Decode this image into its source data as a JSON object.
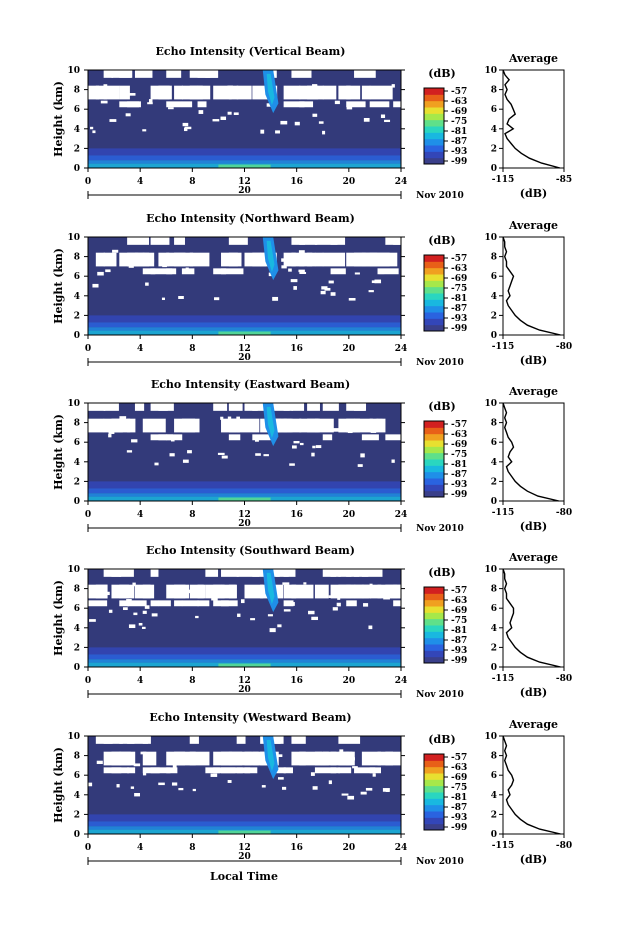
{
  "figure": {
    "xlabel": "Local Time",
    "date_label": "Nov 2010",
    "date_marker": "20",
    "colorbar_unit": "(dB)",
    "colorbar_ticks": [
      "-57",
      "-63",
      "-69",
      "-75",
      "-81",
      "-87",
      "-93",
      "-99"
    ],
    "profile_title": "Average",
    "profile_xlabel": "(dB)"
  },
  "colors": {
    "background_fill": "#333a7a",
    "colorbar": [
      "#3a3f8a",
      "#3346b8",
      "#2a63e0",
      "#1f8fe8",
      "#19b8e0",
      "#2ad6c0",
      "#5fe08a",
      "#a6e84a",
      "#e8e030",
      "#f0a020",
      "#e86018",
      "#d22020"
    ],
    "profile_line": "#000000"
  },
  "chart_data": [
    {
      "type": "heatmap",
      "title": "Echo Intensity (Vertical Beam)",
      "ylabel": "Height (km)",
      "xlim": [
        0,
        24
      ],
      "ylim": [
        0,
        10
      ],
      "xticks": [
        0,
        4,
        8,
        12,
        16,
        20,
        24
      ],
      "yticks": [
        0,
        2,
        4,
        6,
        8,
        10
      ],
      "clim": [
        -99,
        -57
      ],
      "beam": "vertical",
      "profile": {
        "title": "Average",
        "xlabel": "(dB)",
        "xlim": [
          -115,
          -85
        ],
        "xticks": [
          "-115",
          "-85"
        ],
        "height_km": [
          0,
          0.5,
          1,
          1.5,
          2,
          2.5,
          3,
          3.5,
          4,
          4.5,
          5,
          5.5,
          6,
          6.5,
          7,
          7.5,
          8,
          8.5,
          9,
          9.5,
          10
        ],
        "values_db": [
          -87,
          -96,
          -102,
          -106,
          -109,
          -111,
          -113,
          -114,
          -110,
          -113,
          -112,
          -109,
          -110,
          -111,
          -113,
          -114,
          -113,
          -114,
          -112,
          -114,
          -115
        ]
      }
    },
    {
      "type": "heatmap",
      "title": "Echo Intensity (Northward Beam)",
      "ylabel": "Height (km)",
      "xlim": [
        0,
        24
      ],
      "ylim": [
        0,
        10
      ],
      "xticks": [
        0,
        4,
        8,
        12,
        16,
        20,
        24
      ],
      "yticks": [
        0,
        2,
        4,
        6,
        8,
        10
      ],
      "clim": [
        -99,
        -57
      ],
      "beam": "northward",
      "profile": {
        "title": "Average",
        "xlabel": "(dB)",
        "xlim": [
          -115,
          -80
        ],
        "xticks": [
          "-115",
          "-80"
        ],
        "height_km": [
          0,
          0.5,
          1,
          1.5,
          2,
          2.5,
          3,
          3.5,
          4,
          4.5,
          5,
          5.5,
          6,
          6.5,
          7,
          7.5,
          8,
          8.5,
          9,
          9.5,
          10
        ],
        "values_db": [
          -82,
          -94,
          -101,
          -105,
          -108,
          -110,
          -112,
          -113,
          -111,
          -112,
          -111,
          -110,
          -109,
          -111,
          -113,
          -113,
          -114,
          -113,
          -114,
          -114,
          -115
        ]
      }
    },
    {
      "type": "heatmap",
      "title": "Echo Intensity (Eastward Beam)",
      "ylabel": "Height (km)",
      "xlim": [
        0,
        24
      ],
      "ylim": [
        0,
        10
      ],
      "xticks": [
        0,
        4,
        8,
        12,
        16,
        20,
        24
      ],
      "yticks": [
        0,
        2,
        4,
        6,
        8,
        10
      ],
      "clim": [
        -99,
        -57
      ],
      "beam": "eastward",
      "profile": {
        "title": "Average",
        "xlabel": "(dB)",
        "xlim": [
          -115,
          -80
        ],
        "xticks": [
          "-115",
          "-80"
        ],
        "height_km": [
          0,
          0.5,
          1,
          1.5,
          2,
          2.5,
          3,
          3.5,
          4,
          4.5,
          5,
          5.5,
          6,
          6.5,
          7,
          7.5,
          8,
          8.5,
          9,
          9.5,
          10
        ],
        "values_db": [
          -83,
          -95,
          -101,
          -105,
          -108,
          -110,
          -112,
          -113,
          -110,
          -112,
          -111,
          -109,
          -110,
          -112,
          -113,
          -114,
          -113,
          -114,
          -113,
          -114,
          -115
        ]
      }
    },
    {
      "type": "heatmap",
      "title": "Echo Intensity (Southward Beam)",
      "ylabel": "Height (km)",
      "xlim": [
        0,
        24
      ],
      "ylim": [
        0,
        10
      ],
      "xticks": [
        0,
        4,
        8,
        12,
        16,
        20,
        24
      ],
      "yticks": [
        0,
        2,
        4,
        6,
        8,
        10
      ],
      "clim": [
        -99,
        -57
      ],
      "beam": "southward",
      "profile": {
        "title": "Average",
        "xlabel": "(dB)",
        "xlim": [
          -115,
          -80
        ],
        "xticks": [
          "-115",
          "-80"
        ],
        "height_km": [
          0,
          0.5,
          1,
          1.5,
          2,
          2.5,
          3,
          3.5,
          4,
          4.5,
          5,
          5.5,
          6,
          6.5,
          7,
          7.5,
          8,
          8.5,
          9,
          9.5,
          10
        ],
        "values_db": [
          -82,
          -94,
          -101,
          -105,
          -108,
          -110,
          -112,
          -113,
          -110,
          -111,
          -110,
          -109,
          -109,
          -111,
          -113,
          -113,
          -114,
          -113,
          -114,
          -114,
          -115
        ]
      }
    },
    {
      "type": "heatmap",
      "title": "Echo Intensity (Westward Beam)",
      "ylabel": "Height (km)",
      "xlim": [
        0,
        24
      ],
      "ylim": [
        0,
        10
      ],
      "xticks": [
        0,
        4,
        8,
        12,
        16,
        20,
        24
      ],
      "yticks": [
        0,
        2,
        4,
        6,
        8,
        10
      ],
      "clim": [
        -99,
        -57
      ],
      "beam": "westward",
      "profile": {
        "title": "Average",
        "xlabel": "(dB)",
        "xlim": [
          -115,
          -80
        ],
        "xticks": [
          "-115",
          "-80"
        ],
        "height_km": [
          0,
          0.5,
          1,
          1.5,
          2,
          2.5,
          3,
          3.5,
          4,
          4.5,
          5,
          5.5,
          6,
          6.5,
          7,
          7.5,
          8,
          8.5,
          9,
          9.5,
          10
        ],
        "values_db": [
          -82,
          -94,
          -101,
          -105,
          -108,
          -110,
          -112,
          -113,
          -111,
          -112,
          -110,
          -109,
          -110,
          -112,
          -113,
          -114,
          -113,
          -114,
          -113,
          -114,
          -115
        ]
      }
    }
  ]
}
